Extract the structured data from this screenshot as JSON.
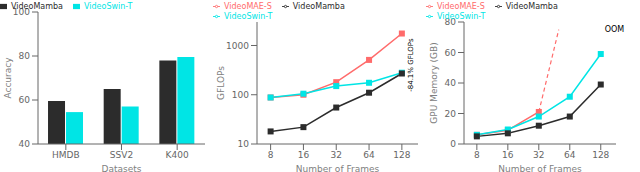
{
  "chart_data": [
    {
      "type": "bar",
      "categories": [
        "HMDB",
        "SSV2",
        "K400"
      ],
      "series": [
        {
          "name": "VideoMamba",
          "color": "#2c2c2c",
          "values": [
            59.5,
            65.0,
            78.0
          ]
        },
        {
          "name": "VideoSwin-T",
          "color": "#00e5e5",
          "values": [
            54.5,
            57.0,
            79.5
          ]
        }
      ],
      "xlabel": "Datasets",
      "ylabel": "Accuracy",
      "ylim": [
        40,
        100
      ],
      "yticks": [
        40,
        60,
        80,
        100
      ],
      "legend": "upper left"
    },
    {
      "type": "line",
      "x": [
        8,
        16,
        32,
        64,
        128
      ],
      "series": [
        {
          "name": "VideoMAE-S",
          "color": "#FF6B6B",
          "values": [
            88,
            100,
            180,
            510,
            1750
          ]
        },
        {
          "name": "VideoSwin-T",
          "color": "#00e5e5",
          "values": [
            88,
            105,
            150,
            175,
            280
          ]
        },
        {
          "name": "VideoMamba",
          "color": "#2c2c2c",
          "values": [
            18,
            22,
            55,
            110,
            270
          ]
        }
      ],
      "xlabel": "Number of Frames",
      "ylabel": "GFLOPs",
      "log": true,
      "xlim": [
        6,
        180
      ],
      "xticks": [
        8,
        16,
        32,
        64,
        128
      ],
      "ylim": [
        10,
        3000
      ],
      "yticks": [
        10,
        100,
        1000
      ],
      "marker": "square",
      "legend": "upper left",
      "annotations": [
        {
          "text": "-84.1% GFLOPs",
          "x": 145,
          "y": 400
        }
      ]
    },
    {
      "type": "line",
      "x": [
        8,
        16,
        32,
        64,
        128
      ],
      "series": [
        {
          "name": "VideoMAE-S",
          "color": "#FF6B6B",
          "x": [
            8,
            16,
            32
          ],
          "values": [
            6,
            9,
            21
          ]
        },
        {
          "color": "#FF6B6B",
          "x": [
            32,
            50
          ],
          "values": [
            21,
            75
          ],
          "line_style": "dashed",
          "marker": "none"
        },
        {
          "name": "VideoSwin-T",
          "color": "#00e5e5",
          "values": [
            6,
            9.5,
            18,
            31,
            59
          ]
        },
        {
          "name": "VideoMamba",
          "color": "#2c2c2c",
          "values": [
            5,
            7,
            12,
            18,
            39
          ]
        }
      ],
      "xlabel": "Number of Frames",
      "ylabel": "GPU Memory (GB)",
      "log": "x",
      "xlim": [
        6,
        180
      ],
      "xticks": [
        8,
        16,
        32,
        64,
        128
      ],
      "ylim": [
        0,
        80
      ],
      "yticks": [
        0,
        20,
        40,
        60,
        80
      ],
      "marker": "square",
      "legend": "upper left",
      "annotations": [
        {
          "text": "OOM",
          "x": 140,
          "y": 77
        }
      ]
    }
  ]
}
